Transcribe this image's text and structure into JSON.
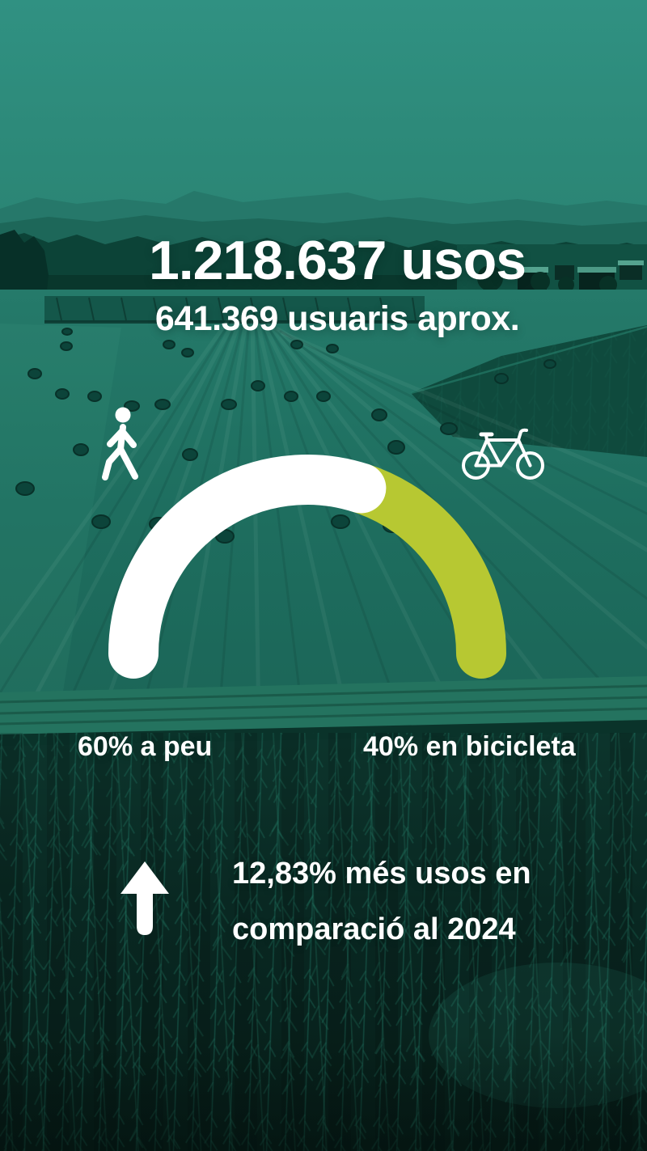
{
  "theme": {
    "overlay_color": "#2e8e7d",
    "accent_green": "#b7c832",
    "text_color": "#ffffff"
  },
  "header": {
    "total_uses": "1.218.637 usos",
    "approx_users": "641.369 usuaris aprox."
  },
  "chart_data": {
    "type": "pie",
    "variant": "semicircle-gauge",
    "categories": [
      "a peu",
      "en bicicleta"
    ],
    "values": [
      60,
      40
    ],
    "unit": "%",
    "labels": [
      "60% a peu",
      "40% en bicicleta"
    ],
    "colors": [
      "#ffffff",
      "#b7c832"
    ],
    "icons": [
      "pedestrian-icon",
      "bicycle-icon"
    ],
    "legend_position": "below-gauge"
  },
  "growth": {
    "line1": "12,83% més usos en",
    "line2": "comparació al 2024",
    "icon": "arrow-up-icon"
  }
}
